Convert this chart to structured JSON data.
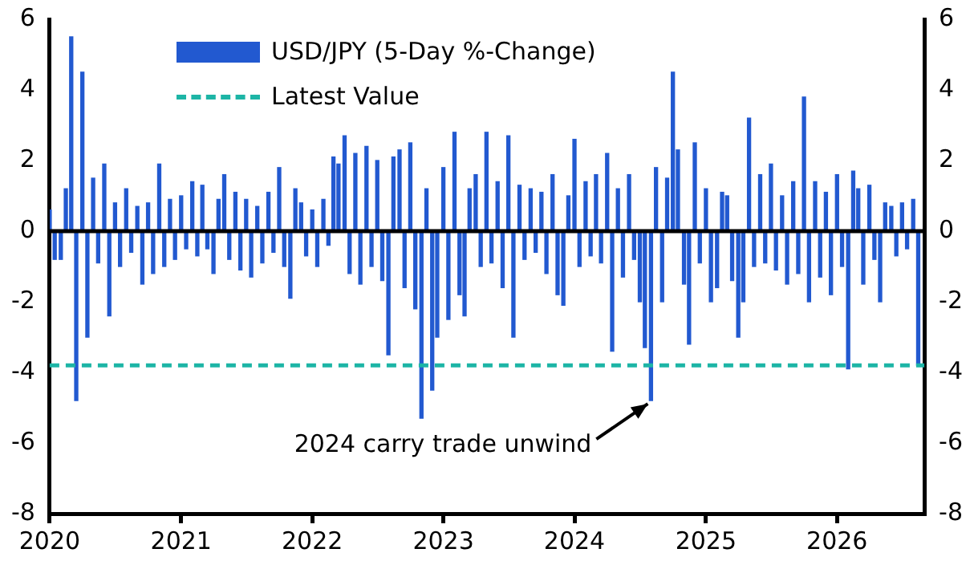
{
  "chart_data": {
    "type": "bar",
    "x": [
      "2020-01-01",
      "2020-01-15",
      "2020-02-01",
      "2020-02-15",
      "2020-03-01",
      "2020-03-15",
      "2020-04-01",
      "2020-04-15",
      "2020-05-01",
      "2020-05-15",
      "2020-06-01",
      "2020-06-15",
      "2020-07-01",
      "2020-07-15",
      "2020-08-01",
      "2020-08-15",
      "2020-09-01",
      "2020-09-15",
      "2020-10-01",
      "2020-10-15",
      "2020-11-01",
      "2020-11-15",
      "2020-12-01",
      "2020-12-15",
      "2021-01-01",
      "2021-01-15",
      "2021-02-01",
      "2021-02-15",
      "2021-03-01",
      "2021-03-15",
      "2021-04-01",
      "2021-04-15",
      "2021-05-01",
      "2021-05-15",
      "2021-06-01",
      "2021-06-15",
      "2021-07-01",
      "2021-07-15",
      "2021-08-01",
      "2021-08-15",
      "2021-09-01",
      "2021-09-15",
      "2021-10-01",
      "2021-10-15",
      "2021-11-01",
      "2021-11-15",
      "2021-12-01",
      "2021-12-15",
      "2022-01-01",
      "2022-01-15",
      "2022-02-01",
      "2022-02-15",
      "2022-03-01",
      "2022-03-15",
      "2022-04-01",
      "2022-04-15",
      "2022-05-01",
      "2022-05-15",
      "2022-06-01",
      "2022-06-15",
      "2022-07-01",
      "2022-07-15",
      "2022-08-01",
      "2022-08-15",
      "2022-09-01",
      "2022-09-15",
      "2022-10-01",
      "2022-10-15",
      "2022-11-01",
      "2022-11-15",
      "2022-12-01",
      "2022-12-15",
      "2023-01-01",
      "2023-01-15",
      "2023-02-01",
      "2023-02-15",
      "2023-03-01",
      "2023-03-15",
      "2023-04-01",
      "2023-04-15",
      "2023-05-01",
      "2023-05-15",
      "2023-06-01",
      "2023-06-15",
      "2023-07-01",
      "2023-07-15",
      "2023-08-01",
      "2023-08-15",
      "2023-09-01",
      "2023-09-15",
      "2023-10-01",
      "2023-10-15",
      "2023-11-01",
      "2023-11-15",
      "2023-12-01",
      "2023-12-15",
      "2024-01-01",
      "2024-01-15",
      "2024-02-01",
      "2024-02-15",
      "2024-03-01",
      "2024-03-15",
      "2024-04-01",
      "2024-04-15",
      "2024-05-01",
      "2024-05-15",
      "2024-06-01",
      "2024-06-15",
      "2024-07-01",
      "2024-07-15",
      "2024-08-01",
      "2024-08-15",
      "2024-09-01",
      "2024-09-15",
      "2024-10-01",
      "2024-10-15",
      "2024-11-01",
      "2024-11-15",
      "2024-12-01",
      "2024-12-15",
      "2025-01-01",
      "2025-01-15",
      "2025-02-01",
      "2025-02-15",
      "2025-03-01",
      "2025-03-15",
      "2025-04-01",
      "2025-04-15",
      "2025-05-01",
      "2025-05-15",
      "2025-06-01",
      "2025-06-15",
      "2025-07-01",
      "2025-07-15",
      "2025-08-01",
      "2025-08-15",
      "2025-09-01",
      "2025-09-15",
      "2025-10-01",
      "2025-10-15",
      "2025-11-01",
      "2025-11-15",
      "2025-12-01",
      "2025-12-15",
      "2026-01-01",
      "2026-01-15",
      "2026-02-01",
      "2026-02-15",
      "2026-03-01",
      "2026-03-15",
      "2026-04-01",
      "2026-04-15",
      "2026-05-01",
      "2026-05-15",
      "2026-06-01",
      "2026-06-15",
      "2026-07-01",
      "2026-07-15",
      "2026-08-01",
      "2026-08-15"
    ],
    "series": [
      {
        "name": "USD/JPY (5-Day %-Change)",
        "color": "#2259d0",
        "values": [
          0.6,
          -0.8,
          -0.8,
          1.2,
          5.5,
          -4.8,
          4.5,
          -3.0,
          1.5,
          -0.9,
          1.9,
          -2.4,
          0.8,
          -1.0,
          1.2,
          -0.6,
          0.7,
          -1.5,
          0.8,
          -1.2,
          1.9,
          -1.0,
          0.9,
          -0.8,
          1.0,
          -0.5,
          1.4,
          -0.7,
          1.3,
          -0.5,
          -1.2,
          0.9,
          1.6,
          -0.8,
          1.1,
          -1.1,
          0.9,
          -1.3,
          0.7,
          -0.9,
          1.1,
          -0.6,
          1.8,
          -1.0,
          -1.9,
          1.2,
          0.8,
          -0.7,
          0.6,
          -1.0,
          0.9,
          -0.4,
          2.1,
          1.9,
          2.7,
          -1.2,
          2.2,
          -1.5,
          2.4,
          -1.0,
          2.0,
          -1.4,
          -3.5,
          2.1,
          2.3,
          -1.6,
          2.5,
          -2.2,
          -5.3,
          1.2,
          -4.5,
          -3.0,
          1.8,
          -2.5,
          2.8,
          -1.8,
          -2.4,
          1.2,
          1.6,
          -1.0,
          2.8,
          -0.9,
          1.4,
          -1.6,
          2.7,
          -3.0,
          1.3,
          -0.8,
          1.2,
          -0.6,
          1.1,
          -1.2,
          1.6,
          -1.8,
          -2.1,
          1.0,
          2.6,
          -1.0,
          1.4,
          -0.7,
          1.6,
          -0.9,
          2.2,
          -3.4,
          1.2,
          -1.3,
          1.6,
          -0.8,
          -2.0,
          -3.3,
          -4.8,
          1.8,
          -2.0,
          1.5,
          4.5,
          2.3,
          -1.5,
          -3.2,
          2.5,
          -0.9,
          1.2,
          -2.0,
          -1.6,
          1.1,
          1.0,
          -1.4,
          -3.0,
          -2.0,
          3.2,
          -1.0,
          1.6,
          -0.9,
          1.9,
          -1.1,
          1.0,
          -1.5,
          1.4,
          -1.2,
          3.8,
          -2.0,
          1.4,
          -1.3,
          1.1,
          -1.8,
          1.6,
          -1.0,
          -3.9,
          1.7,
          1.2,
          -1.5,
          1.3,
          -0.8,
          -2.0,
          0.8,
          0.7,
          -0.7,
          0.8,
          -0.5,
          0.9,
          -3.8
        ]
      }
    ],
    "xlim": [
      "2020-01-01",
      "2026-09-01"
    ],
    "xticks": [
      "2020",
      "2021",
      "2022",
      "2023",
      "2024",
      "2025",
      "2026"
    ],
    "ylim": [
      -8,
      6
    ],
    "yticks": [
      -8,
      -6,
      -4,
      -2,
      0,
      2,
      4,
      6
    ],
    "y2lim": [
      -8,
      6
    ],
    "y2ticks": [
      -8,
      -6,
      -4,
      -2,
      0,
      2,
      4,
      6
    ],
    "ref_lines": [
      {
        "axis": "y",
        "value": 0,
        "color": "#000000",
        "line_style": "solid"
      },
      {
        "axis": "y",
        "value": -3.8,
        "label": "Latest Value",
        "color": "#1db5a6",
        "line_style": "dashed"
      }
    ],
    "annotations": [
      {
        "text": "2024 carry trade unwind",
        "x": "2024-08-01",
        "y": -4.8
      }
    ],
    "legend": "top left",
    "grid": false
  }
}
